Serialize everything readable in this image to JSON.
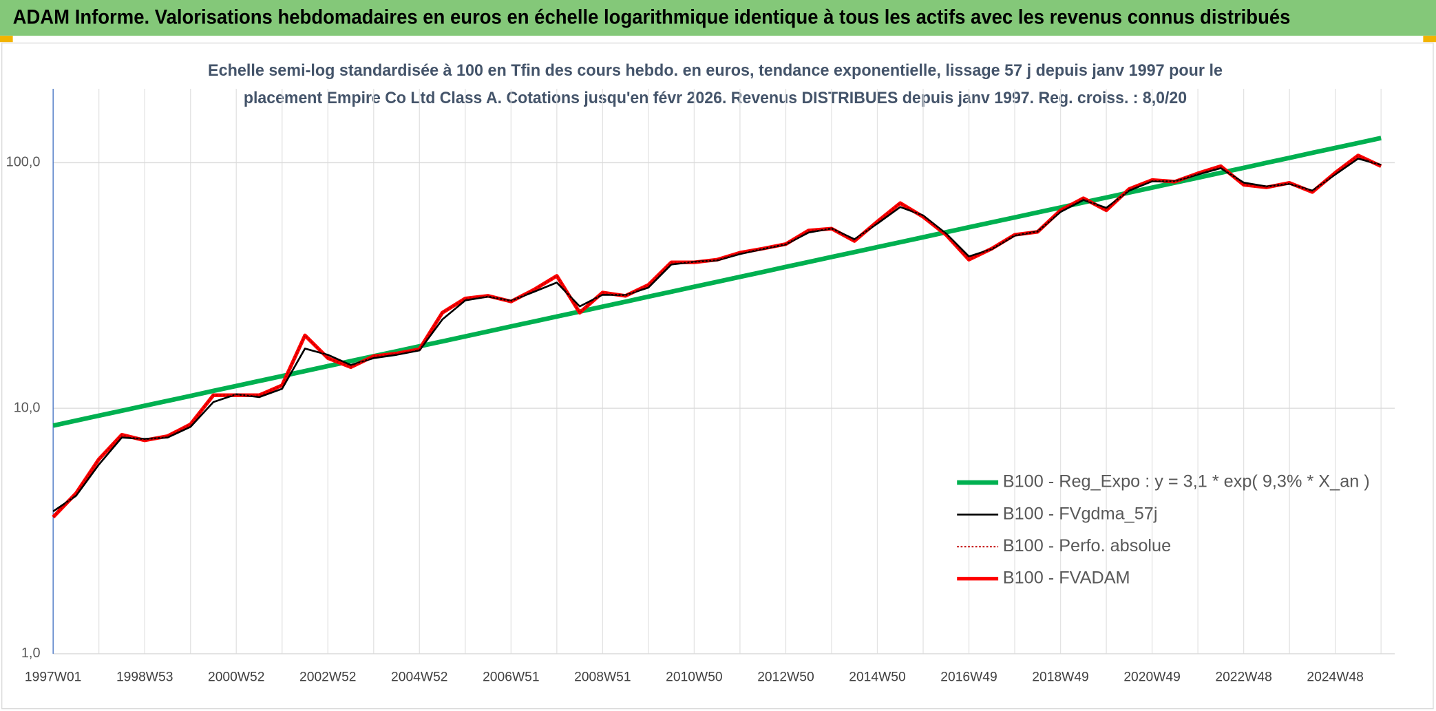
{
  "chart_data": {
    "type": "line",
    "title": "ADAM Informe. Valorisations hebdomadaires en euros en échelle logarithmique identique à tous les actifs avec les revenus connus distribués",
    "subtitle": [
      "Echelle semi-log standardisée à 100 en Tfin des cours hebdo. en euros, tendance exponentielle, lissage 57 j depuis janv 1997 pour le",
      "placement Empire Co Ltd Class A. Cotations jusqu'en févr 2026. Revenus DISTRIBUES depuis janv 1997. Reg. croiss. : 8,0/20"
    ],
    "categories": [
      "1997W01",
      null,
      null,
      null,
      "1998W53",
      null,
      null,
      null,
      "2000W52",
      null,
      null,
      null,
      "2002W52",
      null,
      null,
      null,
      "2004W52",
      null,
      null,
      null,
      "2006W51",
      null,
      null,
      null,
      "2008W51",
      null,
      null,
      null,
      "2010W50",
      null,
      null,
      null,
      "2012W50",
      null,
      null,
      null,
      "2014W50",
      null,
      null,
      null,
      "2016W49",
      null,
      null,
      null,
      "2018W49",
      null,
      null,
      null,
      "2020W49",
      null,
      null,
      null,
      "2022W48",
      null,
      null,
      null,
      "2024W48",
      null,
      null
    ],
    "log_scale": true,
    "ylim": [
      1,
      200
    ],
    "yticks": [
      {
        "value": 1,
        "label": "1,0"
      },
      {
        "value": 10,
        "label": "10,0"
      },
      {
        "value": 100,
        "label": "100,0"
      }
    ],
    "grid": true,
    "legend": "right",
    "series": [
      {
        "name": "B100 - Reg_Expo : y = 3,1 * exp( 9,3% *  X_an )",
        "color": "#00b050",
        "style": "solid",
        "values": [
          8.5,
          8.9,
          9.33,
          9.77,
          10.24,
          10.72,
          11.23,
          11.77,
          12.33,
          12.91,
          13.53,
          14.17,
          14.85,
          15.55,
          16.29,
          17.07,
          17.88,
          18.73,
          19.62,
          20.56,
          21.54,
          22.56,
          23.63,
          24.76,
          25.94,
          27.17,
          28.47,
          29.82,
          31.24,
          32.73,
          34.29,
          35.92,
          37.63,
          39.42,
          41.29,
          43.26,
          45.32,
          47.47,
          49.73,
          52.1,
          54.58,
          57.18,
          59.9,
          62.75,
          65.74,
          68.87,
          72.14,
          75.58,
          79.17,
          82.94,
          86.89,
          91.03,
          95.36,
          99.9,
          104.7,
          109.7,
          114.9,
          120.3,
          126.1
        ]
      },
      {
        "name": "B100 - FVgdma_57j",
        "color": "#000000",
        "style": "solid",
        "values": [
          3.8,
          4.4,
          5.9,
          7.6,
          7.5,
          7.6,
          8.4,
          10.6,
          11.4,
          11.1,
          12.0,
          17.5,
          16.5,
          15.0,
          16.0,
          16.5,
          17.2,
          23.0,
          27.5,
          28.5,
          27.4,
          29.8,
          32.5,
          26.0,
          29.0,
          28.9,
          31.0,
          38.5,
          39.5,
          40.0,
          42.5,
          44.5,
          46.5,
          52.0,
          54.0,
          48.8,
          56.5,
          66.0,
          61.0,
          51.5,
          41.5,
          44.5,
          50.5,
          52.5,
          63.0,
          70.5,
          65.5,
          77.0,
          84.0,
          84.0,
          89.5,
          95.0,
          83.0,
          80.0,
          82.0,
          77.0,
          89.5,
          104.0,
          98.0
        ]
      },
      {
        "name": "B100 - Perfo. absolue",
        "color": "#c00000",
        "style": "dotted",
        "values": [
          3.6,
          4.5,
          6.2,
          7.8,
          7.4,
          7.7,
          8.6,
          11.3,
          11.3,
          11.3,
          12.4,
          19.8,
          16.0,
          14.7,
          16.3,
          16.7,
          17.4,
          24.5,
          28.0,
          28.7,
          27.2,
          30.4,
          34.6,
          24.5,
          29.6,
          28.7,
          31.8,
          39.3,
          39.3,
          40.3,
          43.0,
          44.7,
          46.6,
          53.0,
          53.9,
          48.0,
          57.6,
          68.5,
          60.2,
          50.9,
          40.3,
          44.7,
          50.9,
          52.3,
          64.0,
          71.7,
          64.0,
          78.2,
          85.0,
          83.7,
          90.5,
          96.8,
          81.3,
          79.4,
          82.8,
          76.0,
          91.0,
          107.0,
          96.8
        ]
      },
      {
        "name": "B100 - FVADAM",
        "color": "#ff0000",
        "style": "solid",
        "values": [
          3.6,
          4.5,
          6.2,
          7.8,
          7.4,
          7.7,
          8.6,
          11.3,
          11.3,
          11.3,
          12.4,
          19.8,
          16.0,
          14.7,
          16.3,
          16.7,
          17.4,
          24.5,
          28.0,
          28.7,
          27.2,
          30.4,
          34.6,
          24.5,
          29.6,
          28.7,
          31.8,
          39.3,
          39.3,
          40.3,
          43.0,
          44.7,
          46.6,
          53.0,
          53.9,
          48.0,
          57.6,
          68.5,
          60.2,
          50.9,
          40.3,
          44.7,
          50.9,
          52.3,
          64.0,
          71.7,
          64.0,
          78.2,
          85.0,
          83.7,
          90.5,
          96.8,
          81.3,
          79.4,
          82.8,
          76.0,
          91.0,
          107.0,
          96.8
        ]
      }
    ]
  }
}
